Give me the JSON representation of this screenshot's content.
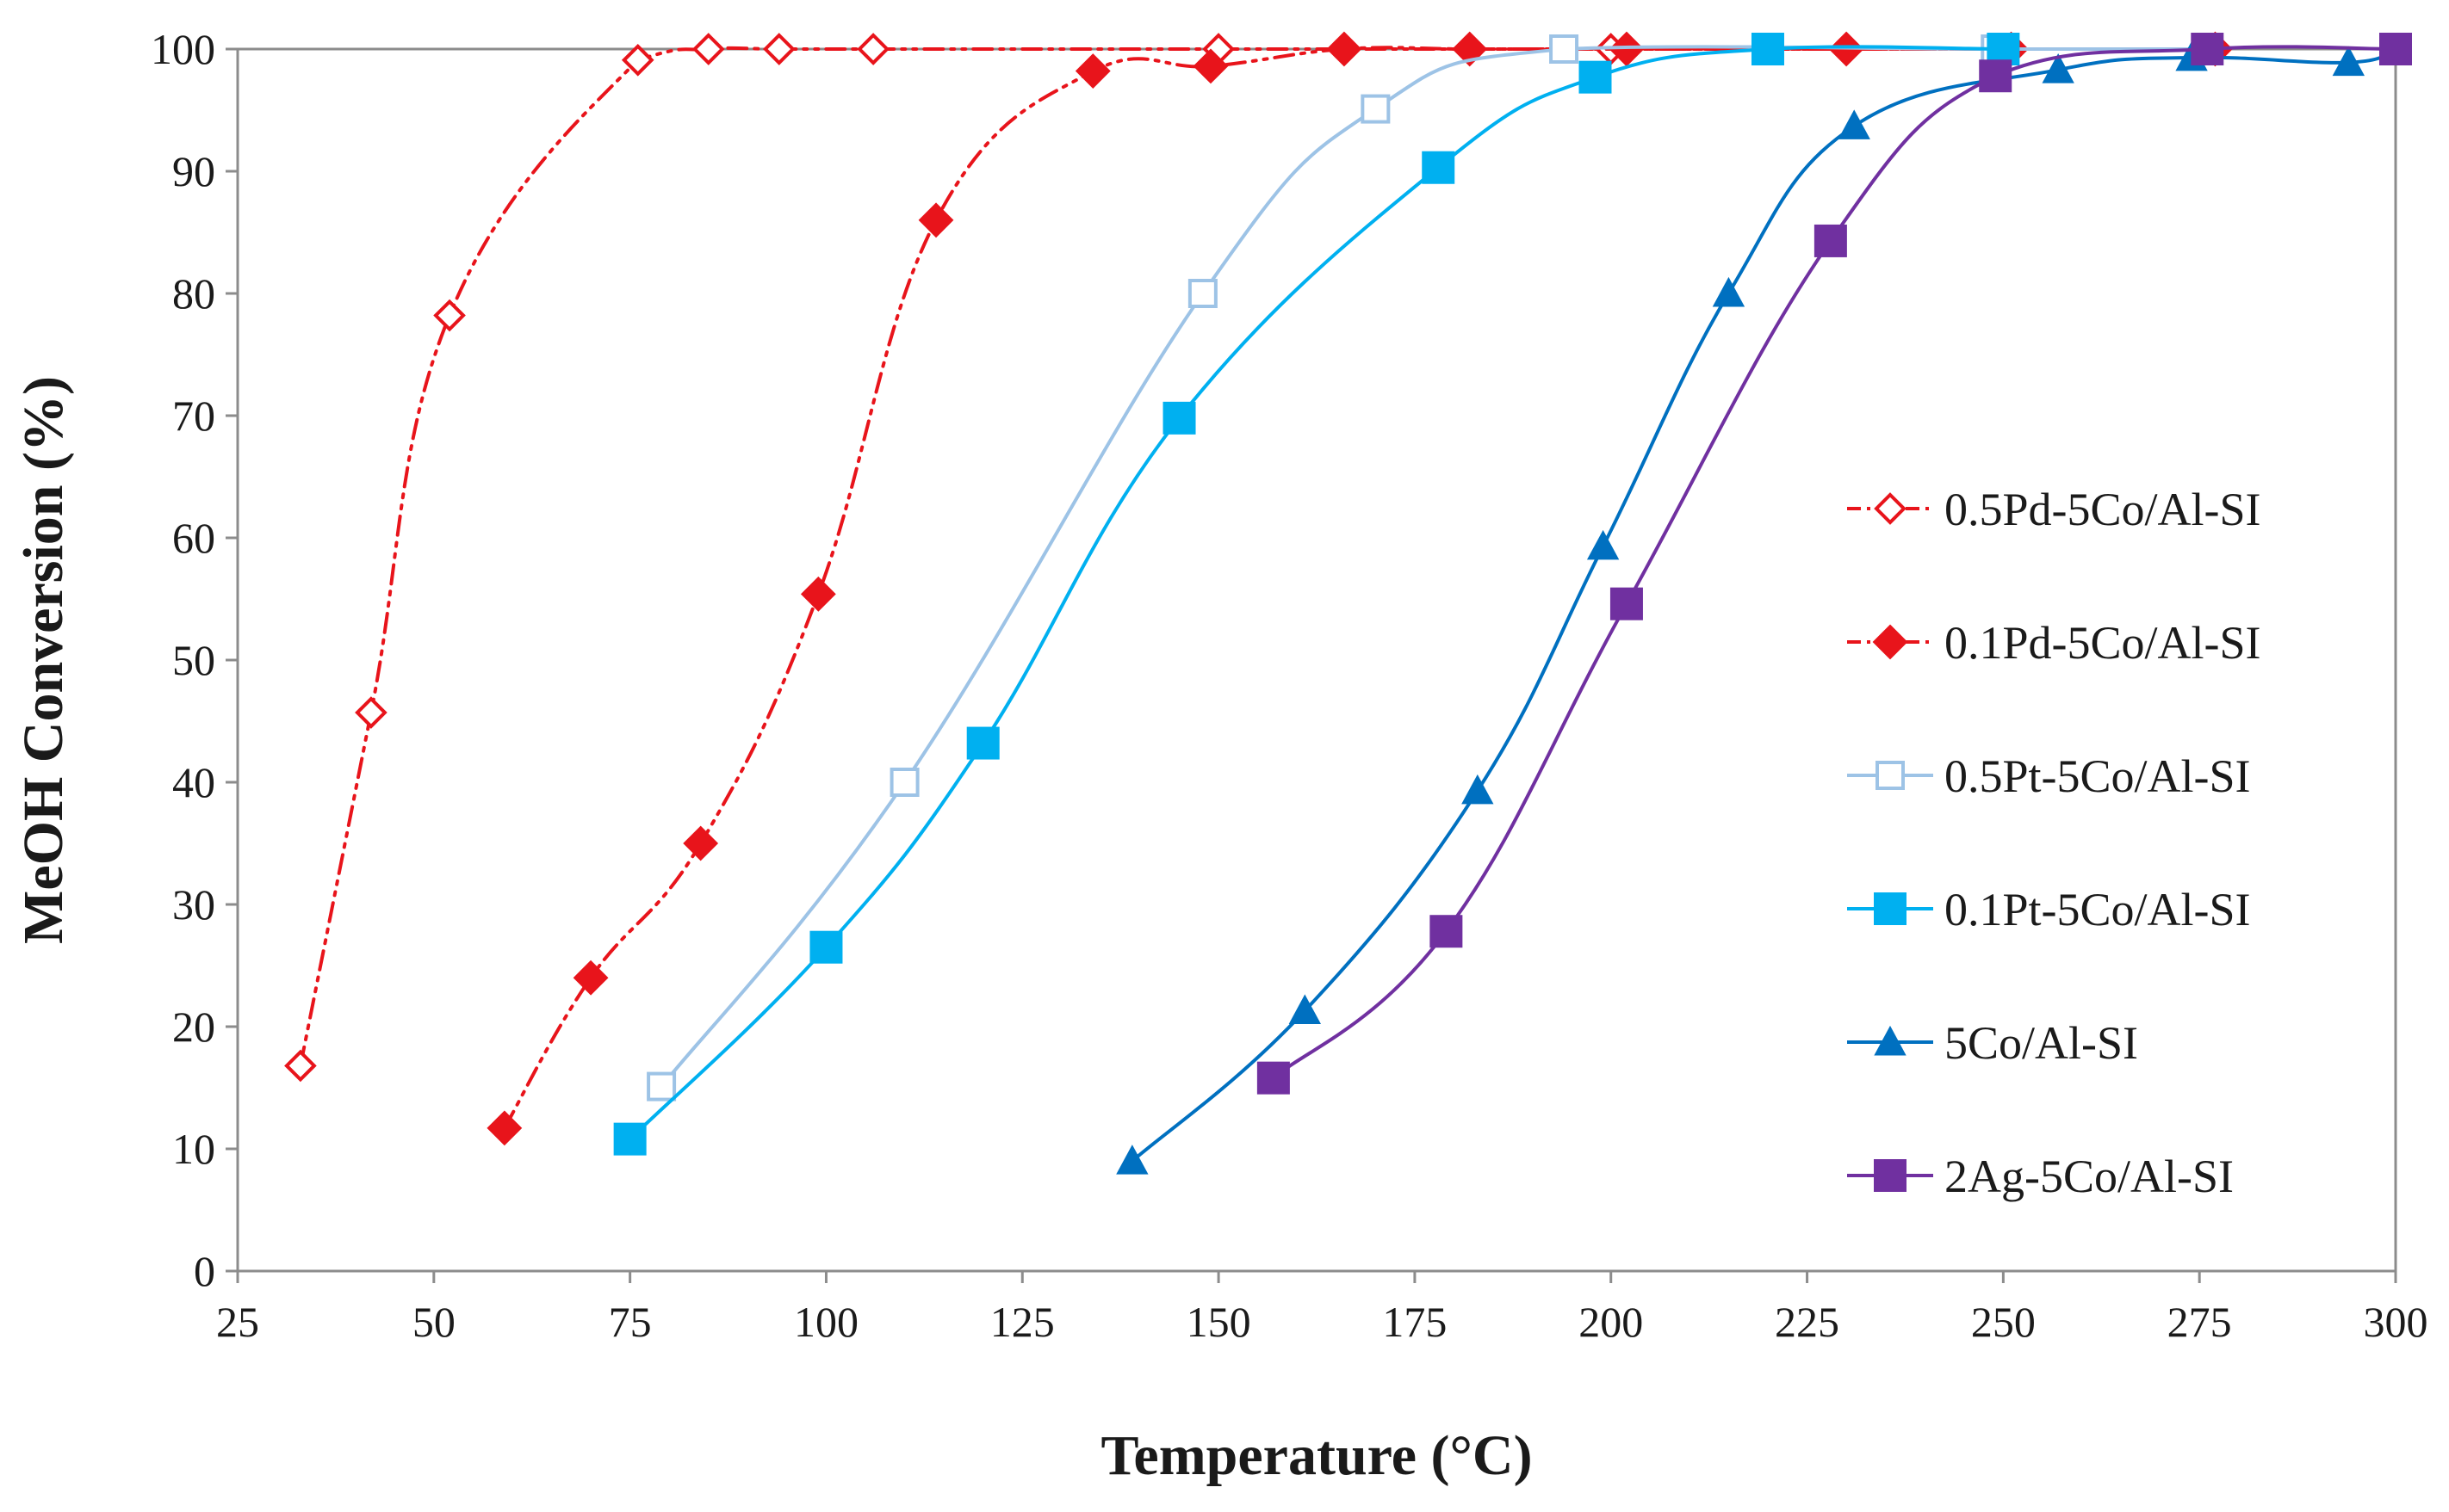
{
  "chart_data": {
    "type": "line",
    "title": "",
    "xlabel": "Temperature (°C)",
    "ylabel": "MeOH Conversion (%)",
    "xlim": [
      25,
      300
    ],
    "ylim": [
      0,
      100
    ],
    "xticks": [
      25,
      50,
      75,
      100,
      125,
      150,
      175,
      200,
      225,
      250,
      275,
      300
    ],
    "yticks": [
      0,
      10,
      20,
      30,
      40,
      50,
      60,
      70,
      80,
      90,
      100
    ],
    "grid": false,
    "legend_position": "right",
    "series": [
      {
        "name": "0.5Pd-5Co/Al-SI",
        "color": "#e8141b",
        "marker": "diamond-open",
        "line": "dash-dot-dot",
        "x": [
          33,
          42,
          52,
          76,
          85,
          94,
          106,
          150,
          200,
          250
        ],
        "y": [
          16.8,
          45.7,
          78.2,
          99.1,
          100,
          100,
          100,
          100,
          100,
          100
        ]
      },
      {
        "name": "0.1Pd-5Co/Al-SI",
        "color": "#e8141b",
        "marker": "diamond",
        "line": "dash-dot-dot",
        "x": [
          59,
          70,
          84,
          99,
          114,
          134,
          149,
          166,
          182,
          202,
          230,
          251,
          277
        ],
        "y": [
          11.7,
          24,
          35,
          55.4,
          86,
          98.2,
          98.6,
          100,
          100,
          100,
          100,
          100,
          100
        ]
      },
      {
        "name": "0.5Pt-5Co/Al-SI",
        "color": "#9dc3e6",
        "marker": "square-open",
        "line": "solid",
        "x": [
          79,
          110,
          148,
          170,
          194,
          249,
          276
        ],
        "y": [
          15.1,
          40,
          80,
          95.1,
          100,
          100,
          100
        ]
      },
      {
        "name": "0.1Pt-5Co/Al-SI",
        "color": "#00b0f0",
        "marker": "square",
        "line": "solid",
        "x": [
          75,
          100,
          120,
          145,
          178,
          198,
          220,
          250
        ],
        "y": [
          10.8,
          26.5,
          43.2,
          69.8,
          90.3,
          97.7,
          100,
          100
        ]
      },
      {
        "name": "5Co/Al-SI",
        "color": "#0070c0",
        "marker": "triangle",
        "line": "solid",
        "x": [
          139,
          161,
          183,
          199,
          215,
          231,
          257,
          274,
          294,
          300
        ],
        "y": [
          9,
          21.3,
          39.3,
          59.3,
          80,
          93.7,
          98.3,
          99.3,
          98.9,
          100
        ]
      },
      {
        "name": "2Ag-5Co/Al-SI",
        "color": "#7030a0",
        "marker": "square",
        "line": "solid",
        "x": [
          157,
          179,
          202,
          228,
          249,
          276,
          300
        ],
        "y": [
          15.8,
          27.8,
          54.6,
          84.3,
          97.8,
          100,
          100
        ]
      }
    ]
  }
}
